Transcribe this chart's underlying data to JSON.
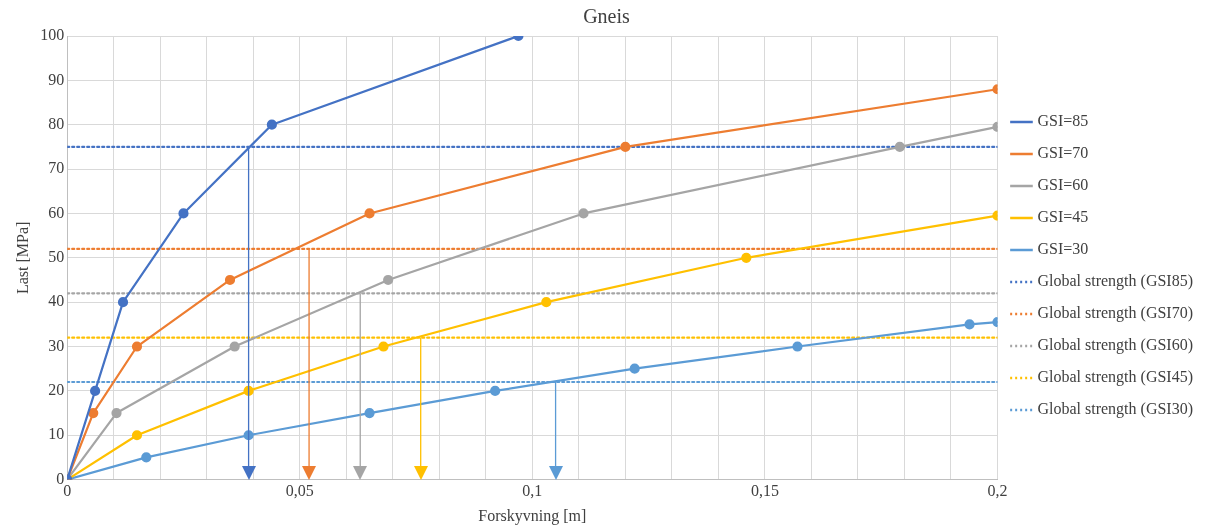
{
  "chart_data": {
    "type": "line",
    "title": "Gneis",
    "xlabel": "Forskyvning [m]",
    "ylabel": "Last [MPa]",
    "xlim": [
      0,
      0.2
    ],
    "xticks": [
      0,
      {
        "value": 0.01,
        "label": null
      },
      {
        "value": 0.02,
        "label": null
      },
      {
        "value": 0.03,
        "label": null
      },
      {
        "value": 0.04,
        "label": null
      },
      {
        "value": 0.05,
        "label": "0,05"
      },
      {
        "value": 0.06,
        "label": null
      },
      {
        "value": 0.07,
        "label": null
      },
      {
        "value": 0.08,
        "label": null
      },
      {
        "value": 0.09,
        "label": null
      },
      {
        "value": 0.1,
        "label": "0,1"
      },
      {
        "value": 0.11,
        "label": null
      },
      {
        "value": 0.12,
        "label": null
      },
      {
        "value": 0.13,
        "label": null
      },
      {
        "value": 0.14,
        "label": null
      },
      {
        "value": 0.15,
        "label": "0,15"
      },
      {
        "value": 0.16,
        "label": null
      },
      {
        "value": 0.17,
        "label": null
      },
      {
        "value": 0.18,
        "label": null
      },
      {
        "value": 0.19,
        "label": null
      },
      {
        "value": 0.2,
        "label": "0,2"
      }
    ],
    "ylim": [
      0,
      100
    ],
    "yticks": [
      0,
      10,
      20,
      30,
      40,
      50,
      60,
      70,
      80,
      90,
      100
    ],
    "grid": true,
    "legend": "right",
    "marker": "circle",
    "line_style": "solid",
    "series": [
      {
        "name": "GSI=85",
        "color": "#4472c4",
        "x": [
          0,
          0.006,
          0.012,
          0.025,
          0.044,
          0.097
        ],
        "values": [
          0,
          20,
          40,
          60,
          80,
          100
        ]
      },
      {
        "name": "GSI=70",
        "color": "#ed7d31",
        "x": [
          0,
          0.0056,
          0.015,
          0.035,
          0.065,
          0.12,
          0.2
        ],
        "values": [
          0,
          15,
          30,
          45,
          60,
          75,
          88
        ]
      },
      {
        "name": "GSI=60",
        "color": "#a5a5a5",
        "x": [
          0,
          0.0106,
          0.036,
          0.069,
          0.111,
          0.179,
          0.2
        ],
        "values": [
          0,
          15,
          30,
          45,
          60,
          75,
          79.5
        ]
      },
      {
        "name": "GSI=45",
        "color": "#ffc000",
        "x": [
          0,
          0.015,
          0.039,
          0.068,
          0.103,
          0.146,
          0.2
        ],
        "values": [
          0,
          10,
          20,
          30,
          40,
          50,
          59.5
        ]
      },
      {
        "name": "GSI=30",
        "color": "#5b9bd5",
        "x": [
          0,
          0.017,
          0.039,
          0.065,
          0.092,
          0.122,
          0.157,
          0.194,
          0.2
        ],
        "values": [
          0,
          5,
          10,
          15,
          20,
          25,
          30,
          35,
          35.5
        ]
      },
      {
        "name": "Global strength (GSI85)",
        "color": "#4472c4",
        "x": [
          0,
          0.2
        ],
        "values": [
          75,
          75
        ],
        "line_style": "dotted",
        "marker": "none"
      },
      {
        "name": "Global strength (GSI70)",
        "color": "#ed7d31",
        "x": [
          0,
          0.2
        ],
        "values": [
          52,
          52
        ],
        "line_style": "dotted",
        "marker": "none"
      },
      {
        "name": "Global strength (GSI60)",
        "color": "#a5a5a5",
        "x": [
          0,
          0.2
        ],
        "values": [
          42,
          42
        ],
        "line_style": "dotted",
        "marker": "none"
      },
      {
        "name": "Global strength (GSI45)",
        "color": "#ffc000",
        "x": [
          0,
          0.2
        ],
        "values": [
          32,
          32
        ],
        "line_style": "dotted",
        "marker": "none"
      },
      {
        "name": "Global strength (GSI30)",
        "color": "#5b9bd5",
        "x": [
          0,
          0.2
        ],
        "values": [
          22,
          22
        ],
        "line_style": "dotted",
        "marker": "none"
      }
    ],
    "ref_lines": [
      {
        "axis": "x",
        "value": 0.039,
        "color": "#4472c4"
      },
      {
        "axis": "x",
        "value": 0.052,
        "color": "#ed7d31"
      },
      {
        "axis": "x",
        "value": 0.063,
        "color": "#a5a5a5"
      },
      {
        "axis": "x",
        "value": 0.076,
        "color": "#ffc000"
      },
      {
        "axis": "x",
        "value": 0.105,
        "color": "#5b9bd5"
      }
    ]
  }
}
